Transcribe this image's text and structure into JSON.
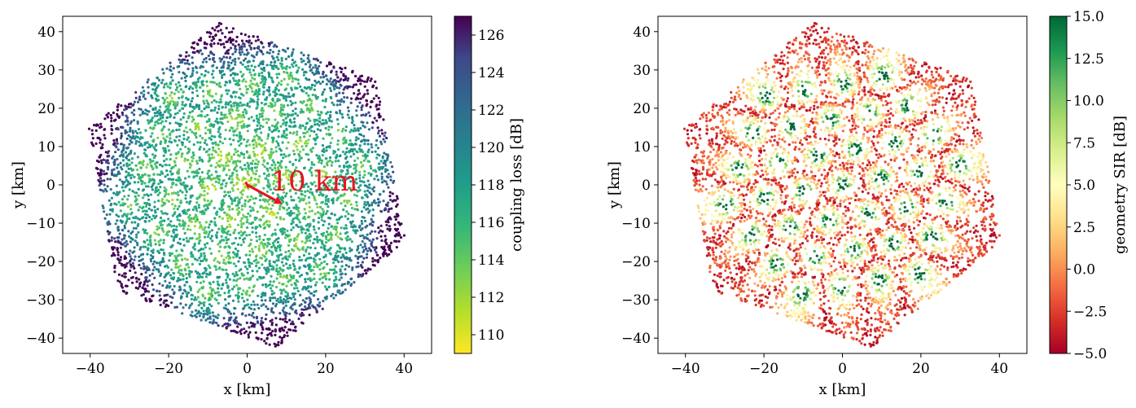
{
  "chart_data": [
    {
      "type": "scatter",
      "title": "",
      "xlabel": "x [km]",
      "ylabel": "y [km]",
      "xlim": [
        -47,
        47
      ],
      "ylim": [
        -44,
        44
      ],
      "xticks": [
        -40,
        -20,
        0,
        20,
        40
      ],
      "yticks": [
        -40,
        -30,
        -20,
        -10,
        0,
        10,
        20,
        30,
        40
      ],
      "hexagon_circumradius_km": 43,
      "hexagon_rotation_deg": 10,
      "inner_site_distance_km": 10,
      "colorbar": {
        "label": "coupling loss [dB]",
        "colormap": "viridis",
        "reversed": true,
        "range": [
          109,
          127
        ],
        "ticks": [
          110,
          112,
          114,
          116,
          118,
          120,
          122,
          124,
          126
        ]
      },
      "annotation": {
        "text": "10 km",
        "arrow_from": [
          0,
          0
        ],
        "arrow_to": [
          9,
          -5
        ],
        "color": "#e8141e"
      },
      "grid": false,
      "legend": "none"
    },
    {
      "type": "scatter",
      "title": "",
      "xlabel": "x [km]",
      "ylabel": "y [km]",
      "xlim": [
        -47,
        47
      ],
      "ylim": [
        -44,
        44
      ],
      "xticks": [
        -40,
        -20,
        0,
        20,
        40
      ],
      "yticks": [
        -40,
        -30,
        -20,
        -10,
        0,
        10,
        20,
        30,
        40
      ],
      "hexagon_circumradius_km": 43,
      "hexagon_rotation_deg": 10,
      "colorbar": {
        "label": "geometry SIR [dB]",
        "colormap": "RdYlGn",
        "range": [
          -5,
          15
        ],
        "ticks": [
          "−5.0",
          "−2.5",
          "0.0",
          "2.5",
          "5.0",
          "7.5",
          "10.0",
          "12.5",
          "15.0"
        ]
      },
      "grid": false,
      "legend": "none"
    }
  ]
}
